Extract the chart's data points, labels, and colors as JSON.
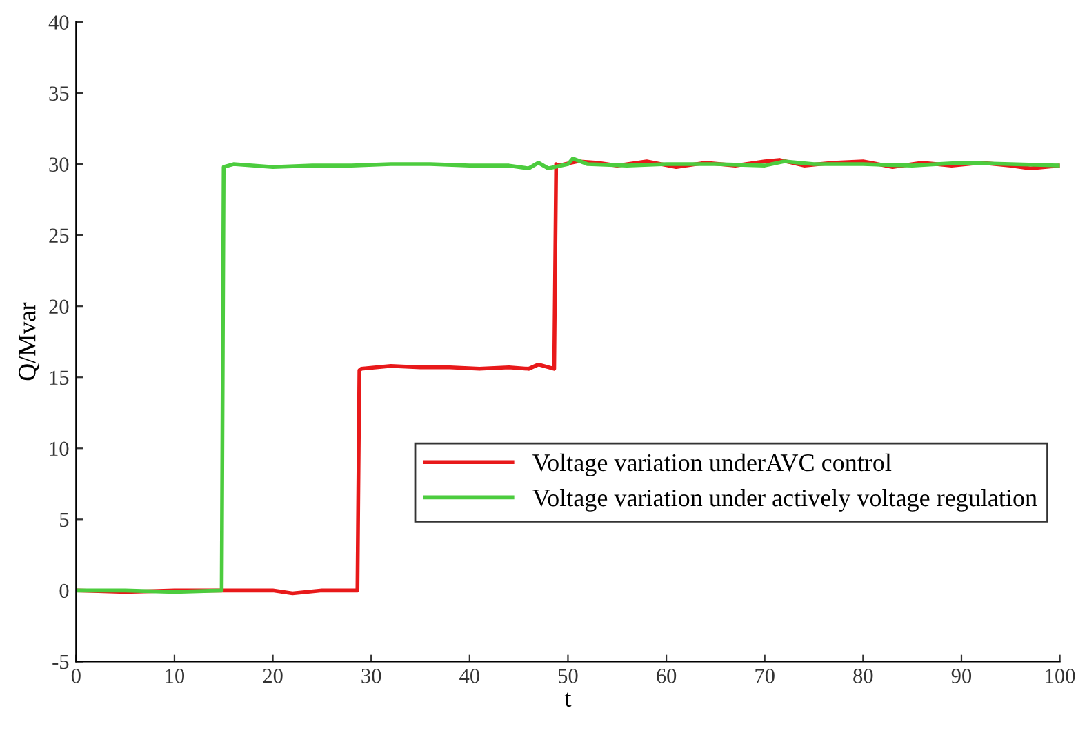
{
  "chart_data": {
    "type": "line",
    "xlabel": "t",
    "ylabel": "Q/Mvar",
    "xlim": [
      0,
      100
    ],
    "ylim": [
      -5,
      40
    ],
    "xticks": [
      0,
      10,
      20,
      30,
      40,
      50,
      60,
      70,
      80,
      90,
      100
    ],
    "yticks": [
      -5,
      0,
      5,
      10,
      15,
      20,
      25,
      30,
      35,
      40
    ],
    "grid": false,
    "legend": "right",
    "series": [
      {
        "name": "Voltage variation underAVC control",
        "color": "#e8191a",
        "x": [
          0,
          5,
          10,
          14.9,
          20,
          22,
          25,
          28.6,
          28.8,
          29,
          32,
          35,
          38,
          41,
          44,
          46,
          47,
          48.6,
          48.8,
          49,
          51,
          53,
          55,
          58,
          61,
          64,
          67,
          70,
          71.5,
          74,
          77,
          80,
          83,
          86,
          89,
          92,
          95,
          97,
          100
        ],
        "values": [
          0,
          -0.1,
          0,
          0,
          0,
          -0.2,
          0,
          0,
          15.5,
          15.6,
          15.8,
          15.7,
          15.7,
          15.6,
          15.7,
          15.6,
          15.9,
          15.6,
          30,
          29.9,
          30.2,
          30.1,
          29.9,
          30.2,
          29.8,
          30.1,
          29.9,
          30.2,
          30.3,
          29.9,
          30.1,
          30.2,
          29.8,
          30.1,
          29.9,
          30.1,
          29.9,
          29.7,
          29.9
        ]
      },
      {
        "name": "Voltage variation under actively voltage regulation",
        "color": "#4ccc3e",
        "x": [
          0,
          5,
          10,
          14.8,
          15,
          16,
          20,
          24,
          28,
          32,
          36,
          40,
          44,
          46,
          47,
          48,
          50,
          50.5,
          52,
          56,
          60,
          65,
          70,
          72,
          75,
          80,
          85,
          90,
          95,
          100
        ],
        "values": [
          0,
          0,
          -0.1,
          0,
          29.8,
          30,
          29.8,
          29.9,
          29.9,
          30,
          30,
          29.9,
          29.9,
          29.7,
          30.1,
          29.7,
          30,
          30.4,
          30,
          29.9,
          30,
          30,
          29.9,
          30.2,
          30,
          30,
          29.9,
          30.1,
          30,
          29.9
        ]
      }
    ]
  }
}
